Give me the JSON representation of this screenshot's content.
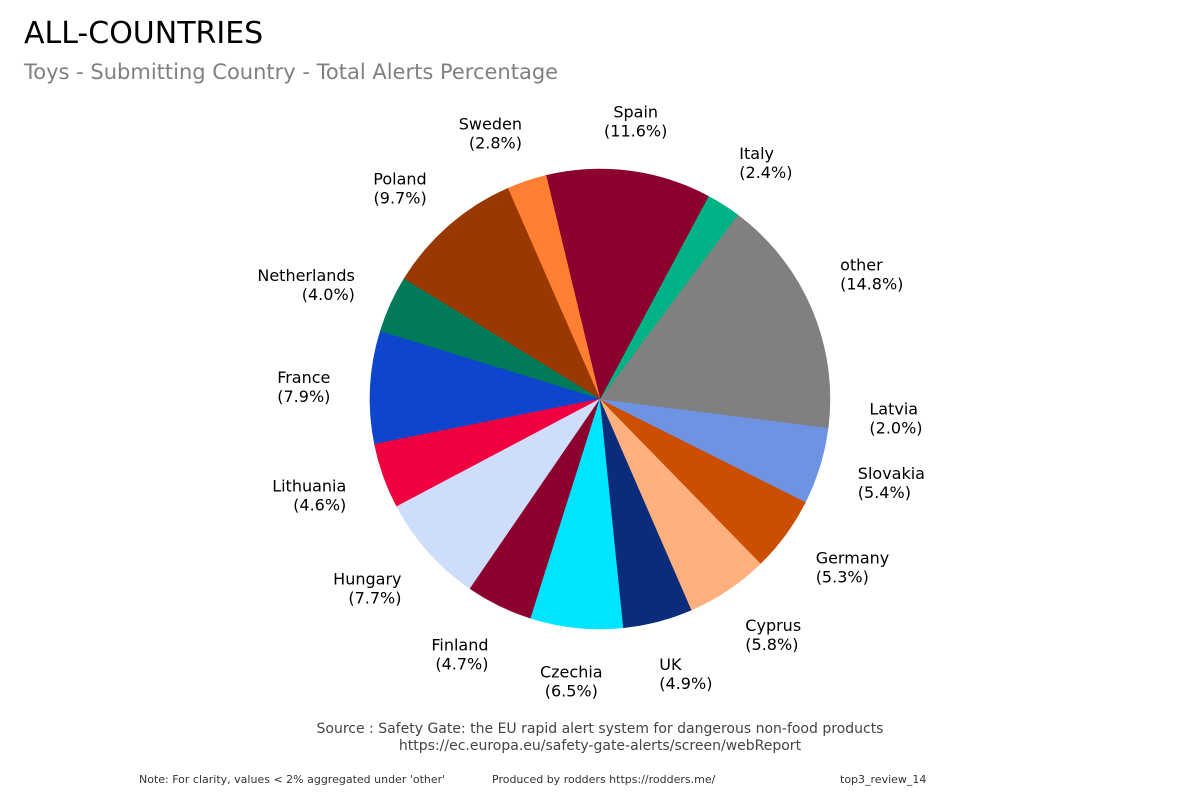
{
  "title": "ALL-COUNTRIES",
  "subtitle": "Toys - Submitting Country - Total Alerts Percentage",
  "source_line1": "Source : Safety Gate: the EU rapid alert system for dangerous non-food products",
  "source_line2": "https://ec.europa.eu/safety-gate-alerts/screen/webReport",
  "note": "Note: For clarity, values < 2% aggregated under 'other'",
  "produced_by": "Produced by rodders https://rodders.me/",
  "report_id": "top3_review_14",
  "chart_data": {
    "type": "pie",
    "title": "ALL-COUNTRIES",
    "subtitle": "Toys - Submitting Country - Total Alerts Percentage",
    "unit": "%",
    "slices": [
      {
        "label": "other",
        "value": 14.8,
        "display": "(14.8%)",
        "color": "#808080"
      },
      {
        "label": "Italy",
        "value": 2.4,
        "display": "(2.4%)",
        "color": "#00B386"
      },
      {
        "label": "Spain",
        "value": 11.6,
        "display": "(11.6%)",
        "color": "#8C002E"
      },
      {
        "label": "Sweden",
        "value": 2.8,
        "display": "(2.8%)",
        "color": "#FF8033"
      },
      {
        "label": "Poland",
        "value": 9.7,
        "display": "(9.7%)",
        "color": "#993800"
      },
      {
        "label": "Netherlands",
        "value": 4.0,
        "display": "(4.0%)",
        "color": "#007A58"
      },
      {
        "label": "France",
        "value": 7.9,
        "display": "(7.9%)",
        "color": "#0D45CC"
      },
      {
        "label": "Lithuania",
        "value": 4.6,
        "display": "(4.6%)",
        "color": "#F0003F"
      },
      {
        "label": "Hungary",
        "value": 7.7,
        "display": "(7.7%)",
        "color": "#CFDDFC"
      },
      {
        "label": "Finland",
        "value": 4.7,
        "display": "(4.7%)",
        "color": "#8C002E"
      },
      {
        "label": "Czechia",
        "value": 6.5,
        "display": "(6.5%)",
        "color": "#00E5FF"
      },
      {
        "label": "UK",
        "value": 4.9,
        "display": "(4.9%)",
        "color": "#0A2C7A"
      },
      {
        "label": "Cyprus",
        "value": 5.8,
        "display": "(5.8%)",
        "color": "#FFB07F"
      },
      {
        "label": "Germany",
        "value": 5.3,
        "display": "(5.3%)",
        "color": "#CC4E00"
      },
      {
        "label": "Slovakia",
        "value": 5.4,
        "display": "(5.4%)",
        "color": "#6F93E3"
      },
      {
        "label": "Latvia",
        "value": 2.0,
        "display": "(2.0%)",
        "color": "#808080"
      }
    ],
    "start_angle_deg": 0,
    "direction": "counterclockwise",
    "legend": "none"
  }
}
